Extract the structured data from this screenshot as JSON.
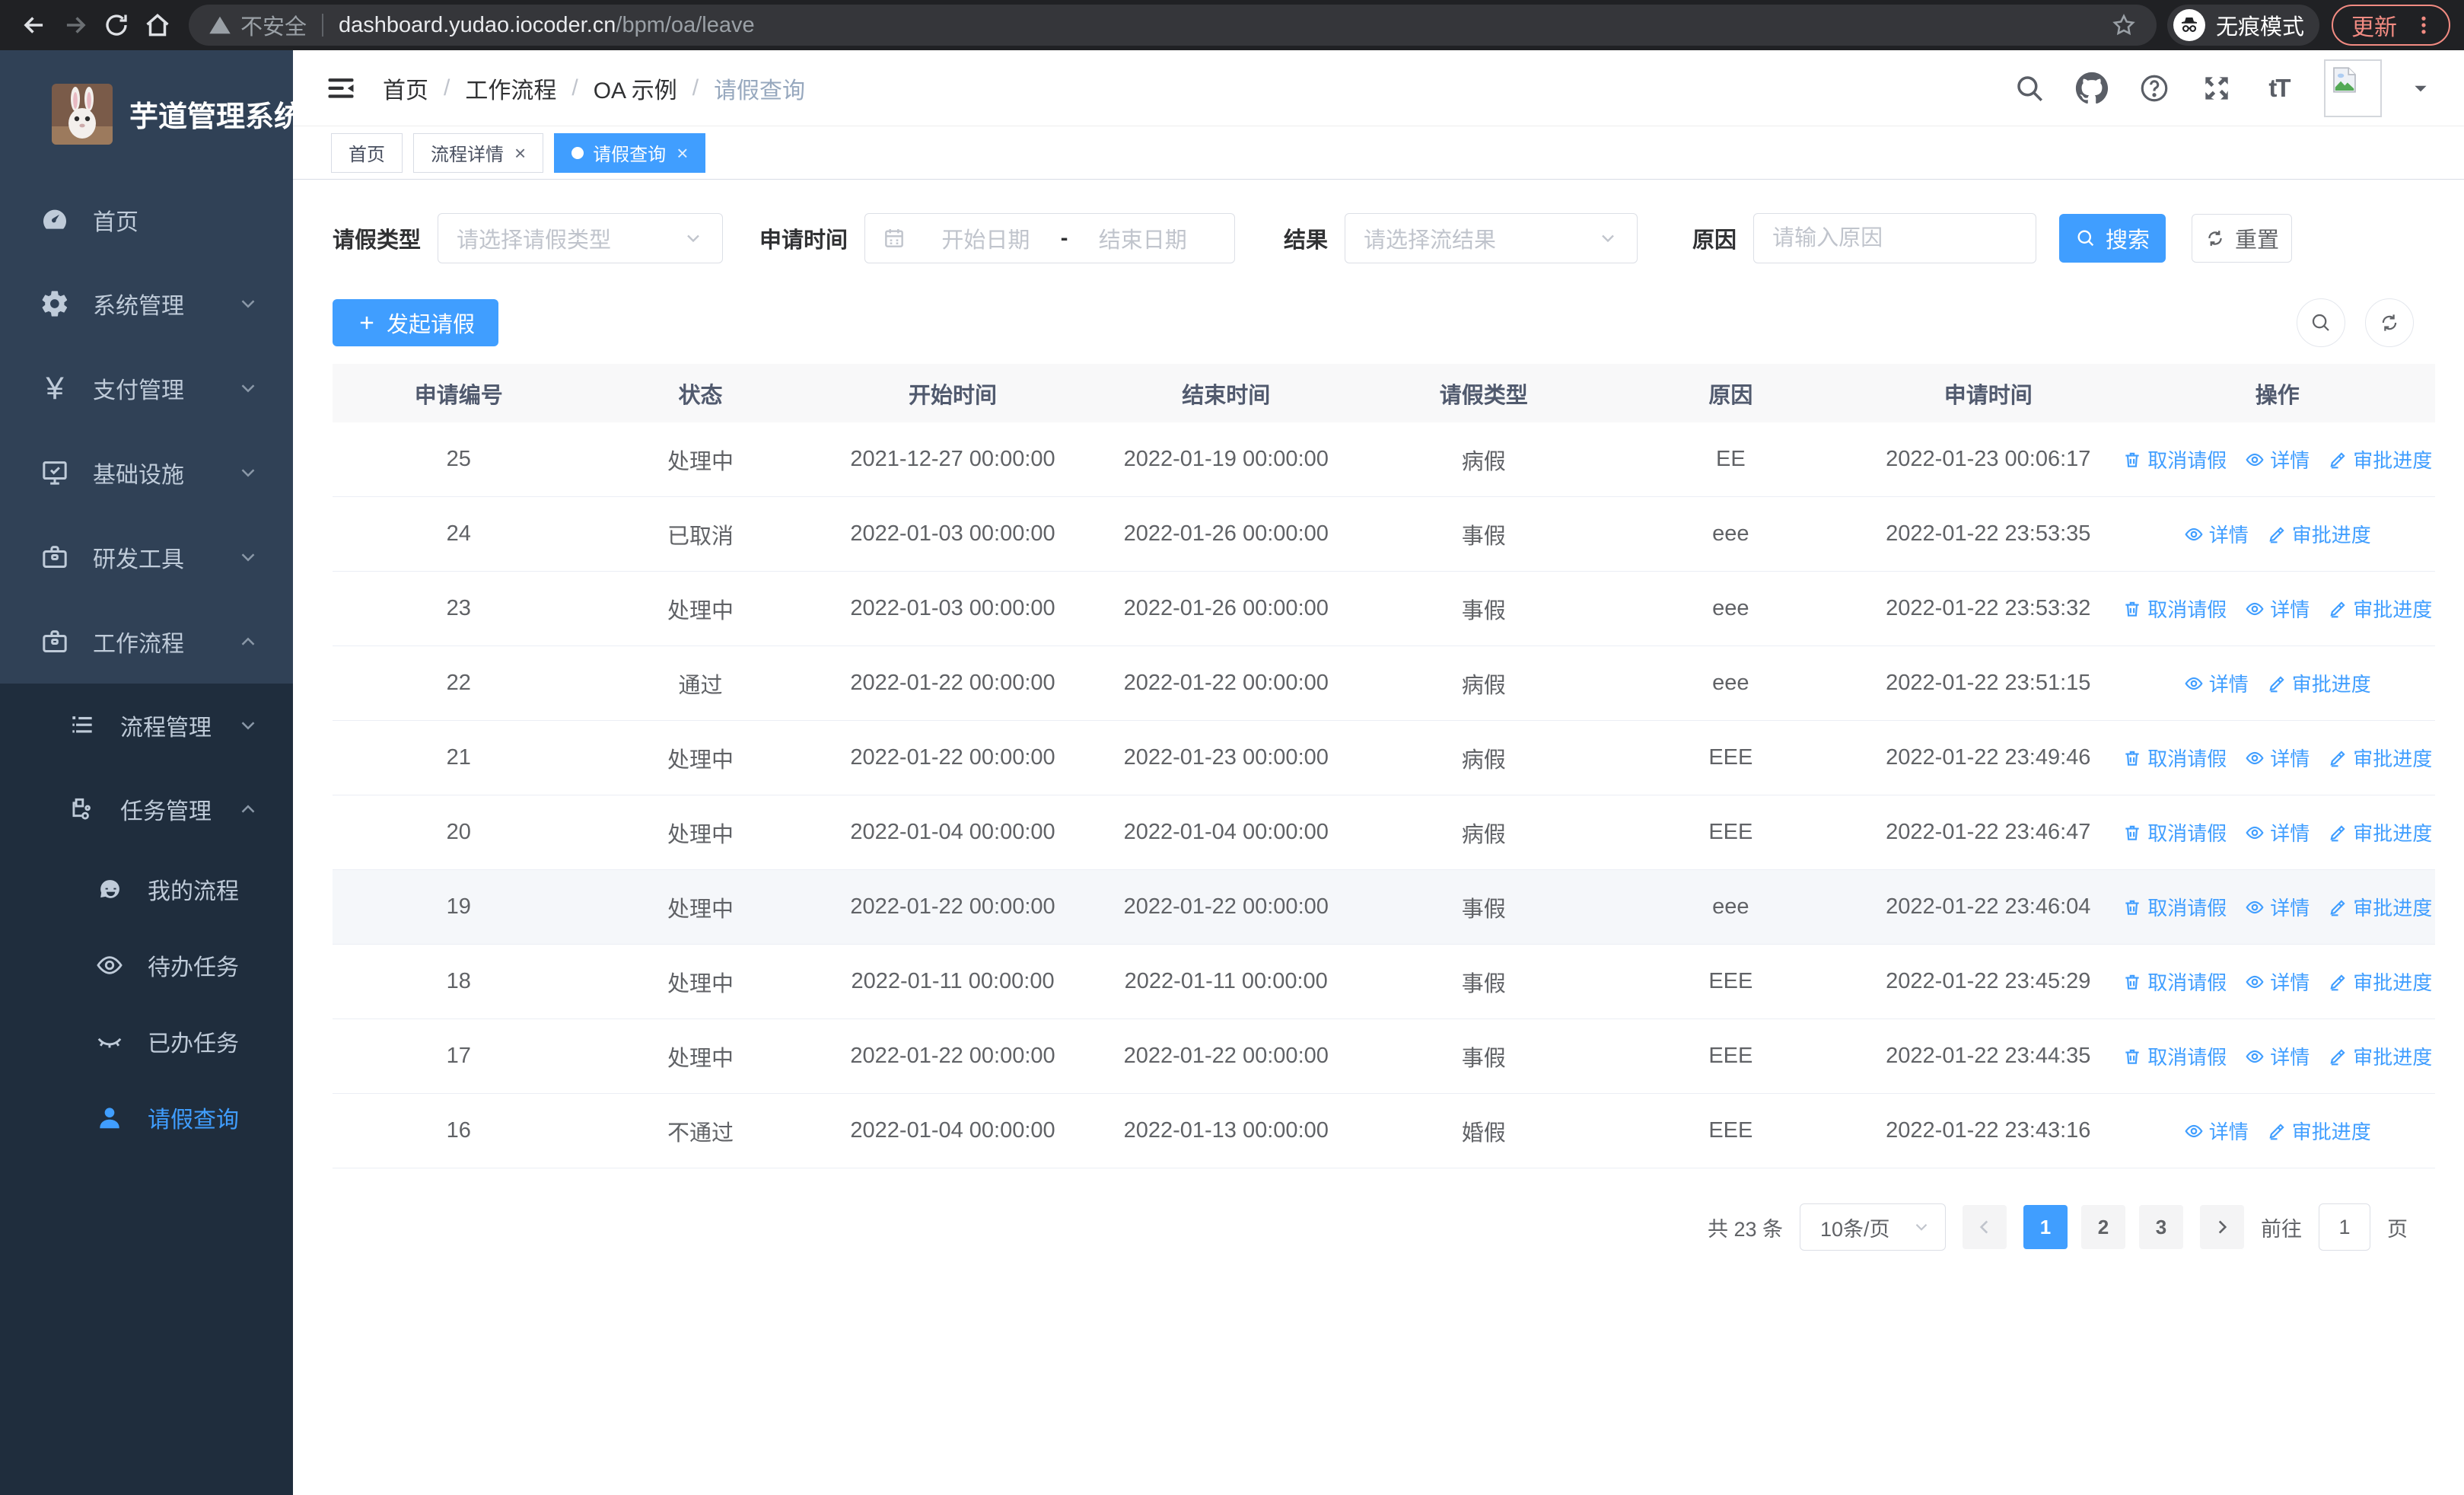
{
  "colors": {
    "accent": "#409eff",
    "sidebar_bg": "#304156",
    "submenu_bg": "#1f2d3d",
    "sidebar_text": "#bfcbd9",
    "chrome_bg": "#202124",
    "update_red": "#f28b82",
    "table_header_bg": "#f8f8f9",
    "row_hover_bg": "#f5f7fa"
  },
  "browser": {
    "security_label": "不安全",
    "url_host": "dashboard.yudao.iocoder.cn",
    "url_path": "/bpm/oa/leave",
    "incognito_label": "无痕模式",
    "update_label": "更新"
  },
  "sidebar": {
    "title": "芋道管理系统",
    "items": [
      {
        "label": "首页"
      },
      {
        "label": "系统管理"
      },
      {
        "label": "支付管理"
      },
      {
        "label": "基础设施"
      },
      {
        "label": "研发工具"
      },
      {
        "label": "工作流程"
      },
      {
        "label": "流程管理"
      },
      {
        "label": "任务管理"
      },
      {
        "label": "我的流程"
      },
      {
        "label": "待办任务"
      },
      {
        "label": "已办任务"
      },
      {
        "label": "请假查询"
      }
    ],
    "yen_glyph": "¥"
  },
  "breadcrumb": {
    "items": [
      "首页",
      "工作流程",
      "OA 示例",
      "请假查询"
    ],
    "separator": "/"
  },
  "tabs": [
    {
      "label": "首页",
      "closable": false,
      "active": false
    },
    {
      "label": "流程详情",
      "closable": true,
      "active": false
    },
    {
      "label": "请假查询",
      "closable": true,
      "active": true
    }
  ],
  "ui": {
    "close_glyph": "×"
  },
  "filters": {
    "leave_type_label": "请假类型",
    "leave_type_placeholder": "请选择请假类型",
    "apply_time_label": "申请时间",
    "start_date_placeholder": "开始日期",
    "range_separator": "-",
    "end_date_placeholder": "结束日期",
    "result_label": "结果",
    "result_placeholder": "请选择流结果",
    "reason_label": "原因",
    "reason_placeholder": "请输入原因",
    "search_label": "搜索",
    "reset_label": "重置"
  },
  "toolbar": {
    "create_label": "发起请假"
  },
  "table": {
    "columns": [
      "申请编号",
      "状态",
      "开始时间",
      "结束时间",
      "请假类型",
      "原因",
      "申请时间",
      "操作"
    ],
    "rows": [
      {
        "id": "25",
        "status": "处理中",
        "start": "2021-12-27 00:00:00",
        "end": "2022-01-19 00:00:00",
        "type": "病假",
        "reason": "EE",
        "apply_time": "2022-01-23 00:06:17",
        "actions": [
          "取消请假",
          "详情",
          "审批进度"
        ],
        "highlight": false
      },
      {
        "id": "24",
        "status": "已取消",
        "start": "2022-01-03 00:00:00",
        "end": "2022-01-26 00:00:00",
        "type": "事假",
        "reason": "eee",
        "apply_time": "2022-01-22 23:53:35",
        "actions": [
          "详情",
          "审批进度"
        ],
        "highlight": false
      },
      {
        "id": "23",
        "status": "处理中",
        "start": "2022-01-03 00:00:00",
        "end": "2022-01-26 00:00:00",
        "type": "事假",
        "reason": "eee",
        "apply_time": "2022-01-22 23:53:32",
        "actions": [
          "取消请假",
          "详情",
          "审批进度"
        ],
        "highlight": false
      },
      {
        "id": "22",
        "status": "通过",
        "start": "2022-01-22 00:00:00",
        "end": "2022-01-22 00:00:00",
        "type": "病假",
        "reason": "eee",
        "apply_time": "2022-01-22 23:51:15",
        "actions": [
          "详情",
          "审批进度"
        ],
        "highlight": false
      },
      {
        "id": "21",
        "status": "处理中",
        "start": "2022-01-22 00:00:00",
        "end": "2022-01-23 00:00:00",
        "type": "病假",
        "reason": "EEE",
        "apply_time": "2022-01-22 23:49:46",
        "actions": [
          "取消请假",
          "详情",
          "审批进度"
        ],
        "highlight": false
      },
      {
        "id": "20",
        "status": "处理中",
        "start": "2022-01-04 00:00:00",
        "end": "2022-01-04 00:00:00",
        "type": "病假",
        "reason": "EEE",
        "apply_time": "2022-01-22 23:46:47",
        "actions": [
          "取消请假",
          "详情",
          "审批进度"
        ],
        "highlight": false
      },
      {
        "id": "19",
        "status": "处理中",
        "start": "2022-01-22 00:00:00",
        "end": "2022-01-22 00:00:00",
        "type": "事假",
        "reason": "eee",
        "apply_time": "2022-01-22 23:46:04",
        "actions": [
          "取消请假",
          "详情",
          "审批进度"
        ],
        "highlight": true
      },
      {
        "id": "18",
        "status": "处理中",
        "start": "2022-01-11 00:00:00",
        "end": "2022-01-11 00:00:00",
        "type": "事假",
        "reason": "EEE",
        "apply_time": "2022-01-22 23:45:29",
        "actions": [
          "取消请假",
          "详情",
          "审批进度"
        ],
        "highlight": false
      },
      {
        "id": "17",
        "status": "处理中",
        "start": "2022-01-22 00:00:00",
        "end": "2022-01-22 00:00:00",
        "type": "事假",
        "reason": "EEE",
        "apply_time": "2022-01-22 23:44:35",
        "actions": [
          "取消请假",
          "详情",
          "审批进度"
        ],
        "highlight": false
      },
      {
        "id": "16",
        "status": "不通过",
        "start": "2022-01-04 00:00:00",
        "end": "2022-01-13 00:00:00",
        "type": "婚假",
        "reason": "EEE",
        "apply_time": "2022-01-22 23:43:16",
        "actions": [
          "详情",
          "审批进度"
        ],
        "highlight": false
      }
    ]
  },
  "pagination": {
    "total_label": "共 23 条",
    "page_size_label": "10条/页",
    "pages": [
      "1",
      "2",
      "3"
    ],
    "active_page": "1",
    "goto_label": "前往",
    "goto_value": "1",
    "unit_label": "页"
  }
}
